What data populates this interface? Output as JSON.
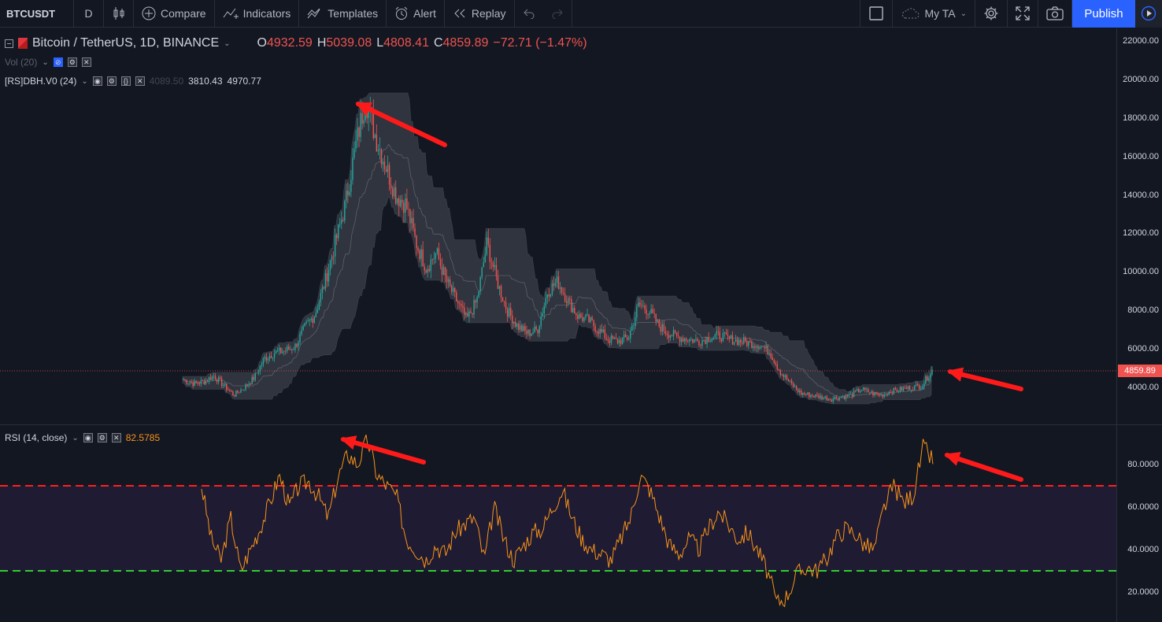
{
  "toolbar": {
    "symbol": "BTCUSDT",
    "interval": "D",
    "compare": "Compare",
    "indicators": "Indicators",
    "templates": "Templates",
    "alert": "Alert",
    "replay": "Replay",
    "layout": "My TA",
    "publish": "Publish"
  },
  "legend": {
    "title": "Bitcoin / TetherUS, 1D, BINANCE",
    "o_label": "O",
    "o_value": "4932.59",
    "h_label": "H",
    "h_value": "5039.08",
    "l_label": "L",
    "l_value": "4808.41",
    "c_label": "C",
    "c_value": "4859.89",
    "change": "−72.71 (−1.47%)"
  },
  "volume": {
    "label": "Vol (20)"
  },
  "dbh": {
    "label": "[RS]DBH.V0 (24)",
    "v1": "4089.50",
    "v2": "3810.43",
    "v3": "4970.77"
  },
  "rsi": {
    "label": "RSI (14, close)",
    "value": "82.5785"
  },
  "price_axis": {
    "ticks": [
      "22000.00",
      "20000.00",
      "18000.00",
      "16000.00",
      "14000.00",
      "12000.00",
      "10000.00",
      "8000.00",
      "6000.00",
      "4000.00"
    ],
    "last_price": "4859.89"
  },
  "rsi_axis": {
    "ticks": [
      "80.0000",
      "60.0000",
      "40.0000",
      "20.0000"
    ]
  },
  "colors": {
    "up": "#26a69a",
    "down": "#ef5350",
    "rsi": "#f7931a",
    "overbought": "#ff1f1f",
    "oversold": "#33cc33",
    "band": "#363a45",
    "accent": "#2962ff"
  },
  "chart_data": [
    {
      "type": "candlestick",
      "title": "Bitcoin / TetherUS, 1D, BINANCE",
      "ylim": [
        2000,
        22000
      ],
      "x_note": "daily candles",
      "close_trajectory": [
        4400,
        4200,
        4300,
        4600,
        4100,
        3600,
        4000,
        4500,
        5500,
        5800,
        5900,
        6100,
        7100,
        7800,
        9500,
        11500,
        13500,
        16500,
        19000,
        17000,
        15500,
        14000,
        13500,
        11500,
        10200,
        11000,
        9500,
        8500,
        7500,
        8500,
        11500,
        9500,
        8000,
        7200,
        6800,
        7000,
        9000,
        9500,
        8500,
        7700,
        7500,
        7000,
        6500,
        6400,
        6600,
        8300,
        8000,
        7200,
        6800,
        6600,
        6500,
        6400,
        6600,
        6700,
        6500,
        6400,
        6300,
        6200,
        5800,
        4800,
        4200,
        3700,
        3600,
        3500,
        3400,
        3500,
        3600,
        3900,
        3700,
        3600,
        3800,
        3900,
        4000,
        4100,
        4900
      ]
    },
    {
      "type": "line",
      "title": "RSI (14, close)",
      "ylim": [
        10,
        97
      ],
      "overbought_level": 70,
      "oversold_level": 30,
      "values": [
        70,
        45,
        35,
        55,
        30,
        40,
        50,
        62,
        75,
        60,
        70,
        72,
        65,
        55,
        74,
        85,
        80,
        92,
        75,
        70,
        65,
        45,
        40,
        35,
        42,
        38,
        48,
        52,
        55,
        35,
        60,
        45,
        35,
        42,
        48,
        50,
        60,
        68,
        55,
        45,
        40,
        38,
        35,
        45,
        55,
        75,
        68,
        55,
        42,
        38,
        45,
        40,
        50,
        58,
        52,
        45,
        48,
        40,
        30,
        15,
        18,
        28,
        32,
        30,
        35,
        45,
        50,
        48,
        42,
        40,
        60,
        70,
        62,
        66,
        88,
        82
      ]
    },
    {
      "type": "bar",
      "title": "Vol (20)"
    }
  ]
}
